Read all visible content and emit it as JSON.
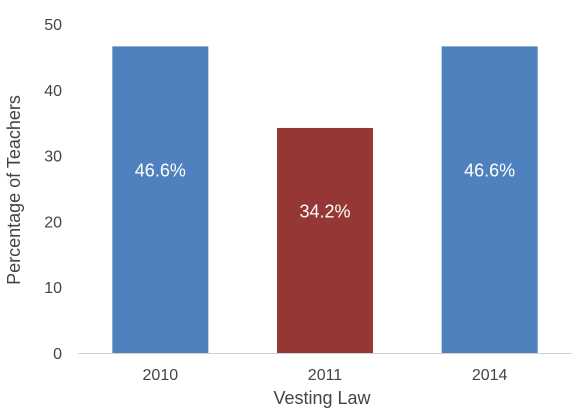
{
  "chart_data": {
    "type": "bar",
    "categories": [
      "2010",
      "2011",
      "2014"
    ],
    "values": [
      46.6,
      34.2,
      46.6
    ],
    "data_labels": [
      "46.6%",
      "34.2%",
      "46.6%"
    ],
    "bar_colors": [
      "#4e81bd",
      "#953735",
      "#4e81bd"
    ],
    "title": "",
    "xlabel": "Vesting Law",
    "ylabel": "Percentage of Teachers",
    "ylim": [
      0,
      50
    ],
    "yticks": [
      "0",
      "10",
      "20",
      "30",
      "40",
      "50"
    ],
    "grid": false,
    "legend": "none"
  }
}
